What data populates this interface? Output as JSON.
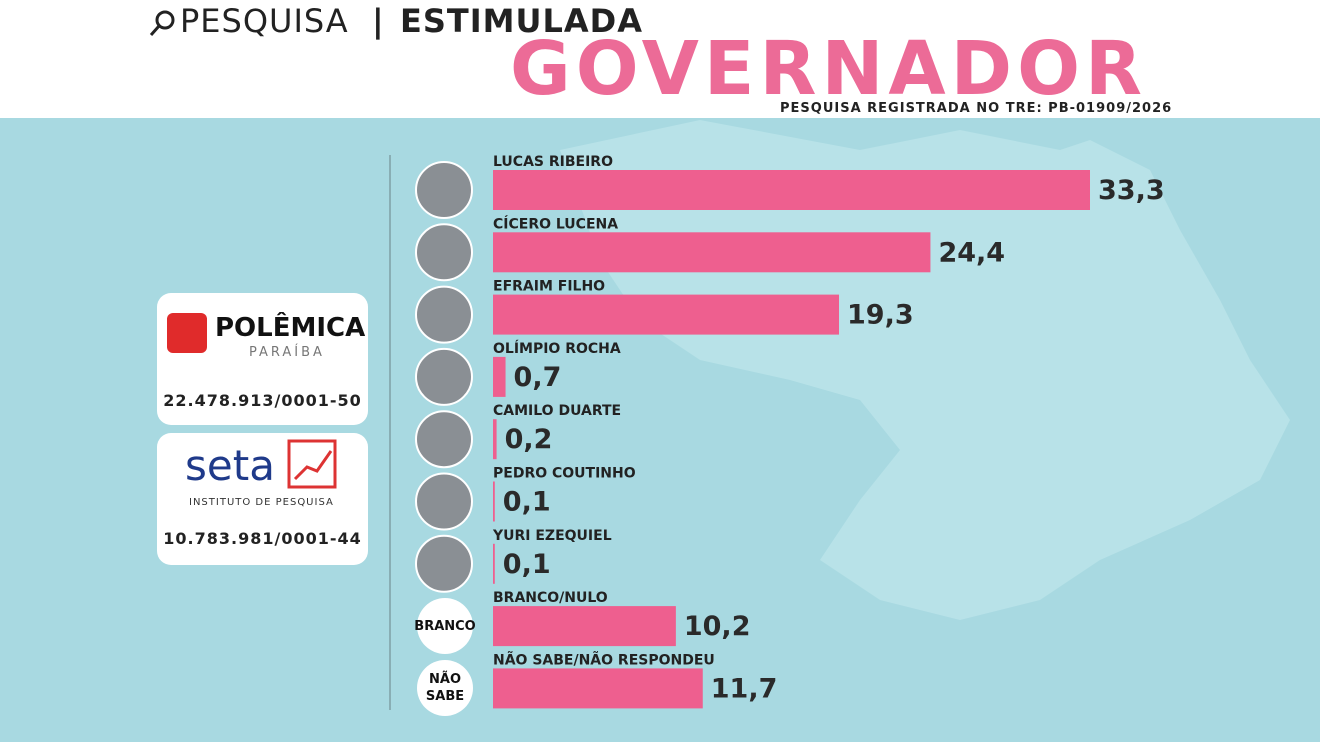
{
  "header": {
    "search": "PESQUISA",
    "type": "ESTIMULADA",
    "title": "GOVERNADOR",
    "registration": "PESQUISA REGISTRADA NO TRE: PB-01909/2026"
  },
  "sponsors": [
    {
      "name": "POLÊMICA",
      "subtitle": "PARAÍBA",
      "id": "22.478.913/0001-50"
    },
    {
      "name": "seta",
      "subtitle": "INSTITUTO DE PESQUISA",
      "id": "10.783.981/0001-44"
    }
  ],
  "badges": [
    "BRANCO",
    "NÃO SABE"
  ],
  "chart_data": {
    "type": "bar",
    "orientation": "horizontal",
    "color": "#ee5f8f",
    "categories": [
      "LUCAS RIBEIRO",
      "CÍCERO LUCENA",
      "EFRAIM FILHO",
      "OLÍMPIO ROCHA",
      "CAMILO DUARTE",
      "PEDRO COUTINHO",
      "YURI EZEQUIEL",
      "BRANCO/NULO",
      "NÃO SABE/NÃO RESPONDEU"
    ],
    "values": [
      33.3,
      24.4,
      19.3,
      0.7,
      0.2,
      0.1,
      0.1,
      10.2,
      11.7
    ],
    "value_labels": [
      "33,3",
      "24,4",
      "19,3",
      "0,7",
      "0,2",
      "0,1",
      "0,1",
      "10,2",
      "11,7"
    ]
  }
}
